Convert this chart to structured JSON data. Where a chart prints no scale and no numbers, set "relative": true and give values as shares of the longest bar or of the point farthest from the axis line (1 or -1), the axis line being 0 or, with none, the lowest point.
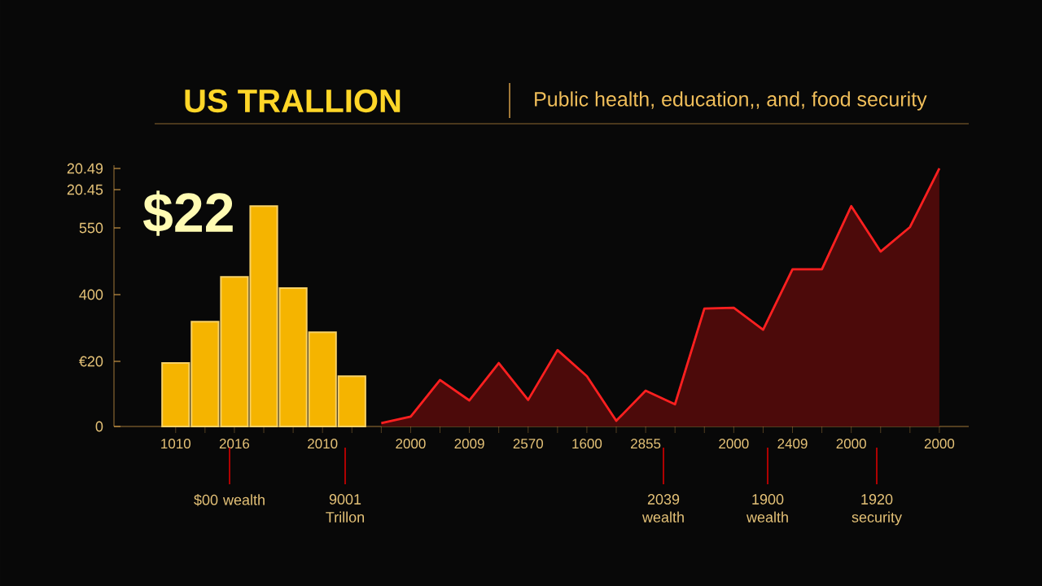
{
  "chart_data": {
    "type": "bar",
    "title": "US TRALLION",
    "subtitle": "Public health, education,, and, food security",
    "relative": true,
    "annotations": [
      "$22",
      "$00 wealth",
      "9001 Trillon",
      "2039 wealth",
      "1900 wealth",
      "1920 security",
      "0",
      "€20",
      "400",
      "550",
      "20.45",
      "20.49"
    ],
    "categories": [
      "1010",
      null,
      "2016",
      null,
      null,
      "2010",
      null,
      null,
      "2000",
      null,
      "2009",
      null,
      "2570",
      null,
      "1600",
      null,
      "2855",
      null,
      null,
      "2000",
      null,
      "2409",
      null,
      "2000",
      null,
      null,
      "2000"
    ],
    "series": [
      {
        "color": "#f5b400",
        "values": [
          0.246,
          0.406,
          0.58,
          0.854,
          0.536,
          0.365,
          0.195,
          null,
          null,
          null,
          null,
          null,
          null,
          null,
          null,
          null,
          null,
          null,
          null,
          null,
          null,
          null,
          null,
          null,
          null,
          null,
          null
        ]
      },
      {
        "type": "area",
        "color": "#ff2020",
        "values": [
          null,
          null,
          null,
          null,
          null,
          null,
          null,
          0.013,
          0.038,
          0.18,
          0.101,
          0.246,
          0.103,
          0.296,
          0.195,
          0.022,
          0.139,
          0.086,
          0.457,
          0.46,
          0.375,
          0.609,
          0.609,
          0.854,
          0.678,
          0.773,
          1
        ]
      }
    ]
  }
}
